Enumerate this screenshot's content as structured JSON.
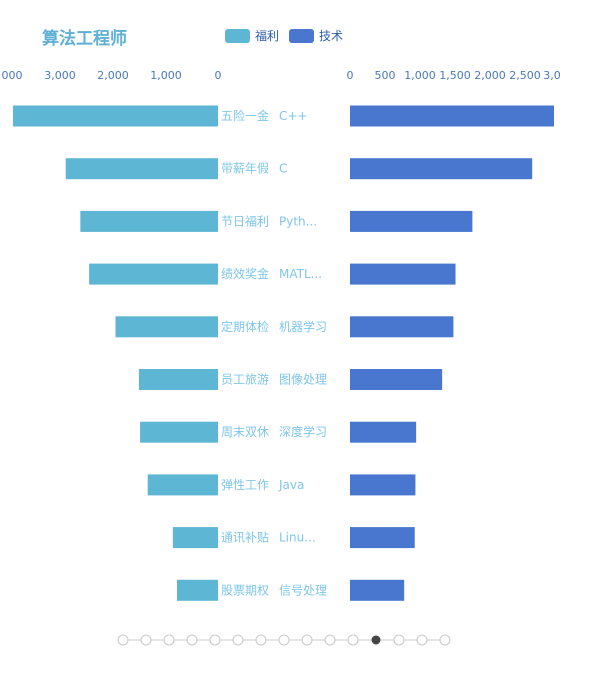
{
  "title": "算法工程师",
  "legend": {
    "items": [
      {
        "label": "福利",
        "color": "#5db6d3"
      },
      {
        "label": "技术",
        "color": "#4977d0"
      }
    ],
    "placement": "top-center"
  },
  "chart_data": [
    {
      "type": "bar",
      "orientation": "horizontal",
      "direction": "right-to-left",
      "series": [
        {
          "name": "福利",
          "values": [
            3500,
            2600,
            2350,
            2200,
            1750,
            1350,
            1330,
            1200,
            770,
            700
          ]
        }
      ],
      "categories": [
        "五险一金",
        "带薪年假",
        "节日福利",
        "绩效奖金",
        "定期体检",
        "员工旅游",
        "周末双休",
        "弹性工作",
        "通讯补贴",
        "股票期权"
      ],
      "x_ticks": [
        "000",
        "3,000",
        "2,000",
        "1,000",
        "0"
      ],
      "xlim": [
        0,
        4000
      ],
      "grid": false,
      "color": "#5db6d3"
    },
    {
      "type": "bar",
      "orientation": "horizontal",
      "direction": "left-to-right",
      "series": [
        {
          "name": "技术",
          "values": [
            2900,
            2590,
            1740,
            1500,
            1470,
            1310,
            940,
            930,
            920,
            770
          ]
        }
      ],
      "categories": [
        "C++",
        "C",
        "Pyth...",
        "MATL...",
        "机器学习",
        "图像处理",
        "深度学习",
        "Java",
        "Linu...",
        "信号处理"
      ],
      "x_ticks": [
        "0",
        "500",
        "1,000",
        "1,500",
        "2,000",
        "2,500",
        "3,0"
      ],
      "xlim": [
        0,
        3000
      ],
      "grid": false,
      "color": "#4977d0"
    }
  ],
  "timeline": {
    "count": 15,
    "active_index": 11
  }
}
